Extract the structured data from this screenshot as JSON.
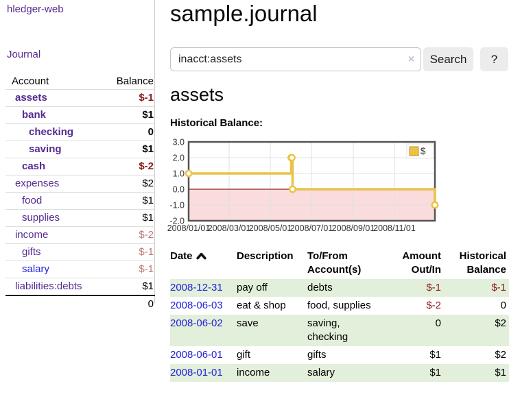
{
  "app": {
    "brand": "hledger-web"
  },
  "sidebar": {
    "nav_journal": "Journal",
    "accounts": {
      "headers": {
        "account": "Account",
        "balance": "Balance"
      },
      "rows": [
        {
          "name": "assets",
          "level": 1,
          "bold": true,
          "link": "purple",
          "balance": "$-1",
          "balance_class": "neg"
        },
        {
          "name": "bank",
          "level": 2,
          "bold": true,
          "link": "purple",
          "balance": "$1",
          "balance_class": ""
        },
        {
          "name": "checking",
          "level": 3,
          "bold": true,
          "link": "purple",
          "balance": "0",
          "balance_class": ""
        },
        {
          "name": "saving",
          "level": 3,
          "bold": true,
          "link": "purple",
          "balance": "$1",
          "balance_class": ""
        },
        {
          "name": "cash",
          "level": 2,
          "bold": true,
          "link": "purple",
          "balance": "$-2",
          "balance_class": "neg"
        },
        {
          "name": "expenses",
          "level": 1,
          "bold": false,
          "link": "purple",
          "balance": "$2",
          "balance_class": ""
        },
        {
          "name": "food",
          "level": 2,
          "bold": false,
          "link": "purple",
          "balance": "$1",
          "balance_class": ""
        },
        {
          "name": "supplies",
          "level": 2,
          "bold": false,
          "link": "purple",
          "balance": "$1",
          "balance_class": ""
        },
        {
          "name": "income",
          "level": 1,
          "bold": false,
          "link": "purple",
          "balance": "$-2",
          "balance_class": "neg-light"
        },
        {
          "name": "gifts",
          "level": 2,
          "bold": false,
          "link": "purple",
          "balance": "$-1",
          "balance_class": "neg-light"
        },
        {
          "name": "salary",
          "level": 2,
          "bold": false,
          "link": "blue",
          "balance": "$-1",
          "balance_class": "neg-light"
        },
        {
          "name": "liabilities:debts",
          "level": 1,
          "bold": false,
          "link": "purple",
          "balance": "$1",
          "balance_class": ""
        }
      ],
      "total": "0"
    }
  },
  "main": {
    "title": "sample.journal",
    "search": {
      "value": "inacct:assets",
      "clear": "×",
      "search_button": "Search",
      "help_button": "?"
    },
    "account_heading": "assets",
    "section_label": "Historical Balance:"
  },
  "chart_data": {
    "type": "line",
    "style": "step",
    "title": "Historical Balance",
    "x_start": "2008-01-01",
    "x_end": "2008-12-31",
    "xticks": [
      {
        "date": "2008-01-01",
        "label": "2008/01/01"
      },
      {
        "date": "2008-03-01",
        "label": "2008/03/01"
      },
      {
        "date": "2008-05-01",
        "label": "2008/05/01"
      },
      {
        "date": "2008-07-01",
        "label": "2008/07/01"
      },
      {
        "date": "2008-09-01",
        "label": "2008/09/01"
      },
      {
        "date": "2008-11-01",
        "label": "2008/11/01"
      }
    ],
    "yticks": [
      3.0,
      2.0,
      1.0,
      0.0,
      -1.0,
      -2.0
    ],
    "ylim": [
      -2,
      3
    ],
    "grid": true,
    "legend": {
      "label": "$",
      "position": "top-right"
    },
    "series": [
      {
        "name": "$",
        "color": "#e8c24a",
        "marker_color": "#edc240",
        "points": [
          {
            "date": "2008-01-01",
            "value": 1
          },
          {
            "date": "2008-06-01",
            "value": 2
          },
          {
            "date": "2008-06-02",
            "value": 2
          },
          {
            "date": "2008-06-03",
            "value": 0
          },
          {
            "date": "2008-12-31",
            "value": -1
          }
        ]
      }
    ],
    "negative_region_color": "#fadcdc",
    "zero_line_color": "#8b1f1f"
  },
  "register": {
    "headers": [
      {
        "line1": "Date",
        "line2": ""
      },
      {
        "line1": "Description",
        "line2": ""
      },
      {
        "line1": "To/From",
        "line2": "Account(s)"
      },
      {
        "line1": "Amount",
        "line2": "Out/In"
      },
      {
        "line1": "Historical",
        "line2": "Balance"
      }
    ],
    "rows": [
      {
        "date": "2008-12-31",
        "description": "pay off",
        "accounts": "debts",
        "amount": "$-1",
        "amount_class": "neg",
        "balance": "$-1",
        "balance_class": "neg"
      },
      {
        "date": "2008-06-03",
        "description": "eat & shop",
        "accounts": "food, supplies",
        "amount": "$-2",
        "amount_class": "neg",
        "balance": "0",
        "balance_class": ""
      },
      {
        "date": "2008-06-02",
        "description": "save",
        "accounts": "saving, checking",
        "amount": "0",
        "amount_class": "",
        "balance": "$2",
        "balance_class": ""
      },
      {
        "date": "2008-06-01",
        "description": "gift",
        "accounts": "gifts",
        "amount": "$1",
        "amount_class": "",
        "balance": "$2",
        "balance_class": ""
      },
      {
        "date": "2008-01-01",
        "description": "income",
        "accounts": "salary",
        "amount": "$1",
        "amount_class": "",
        "balance": "$1",
        "balance_class": ""
      }
    ]
  }
}
